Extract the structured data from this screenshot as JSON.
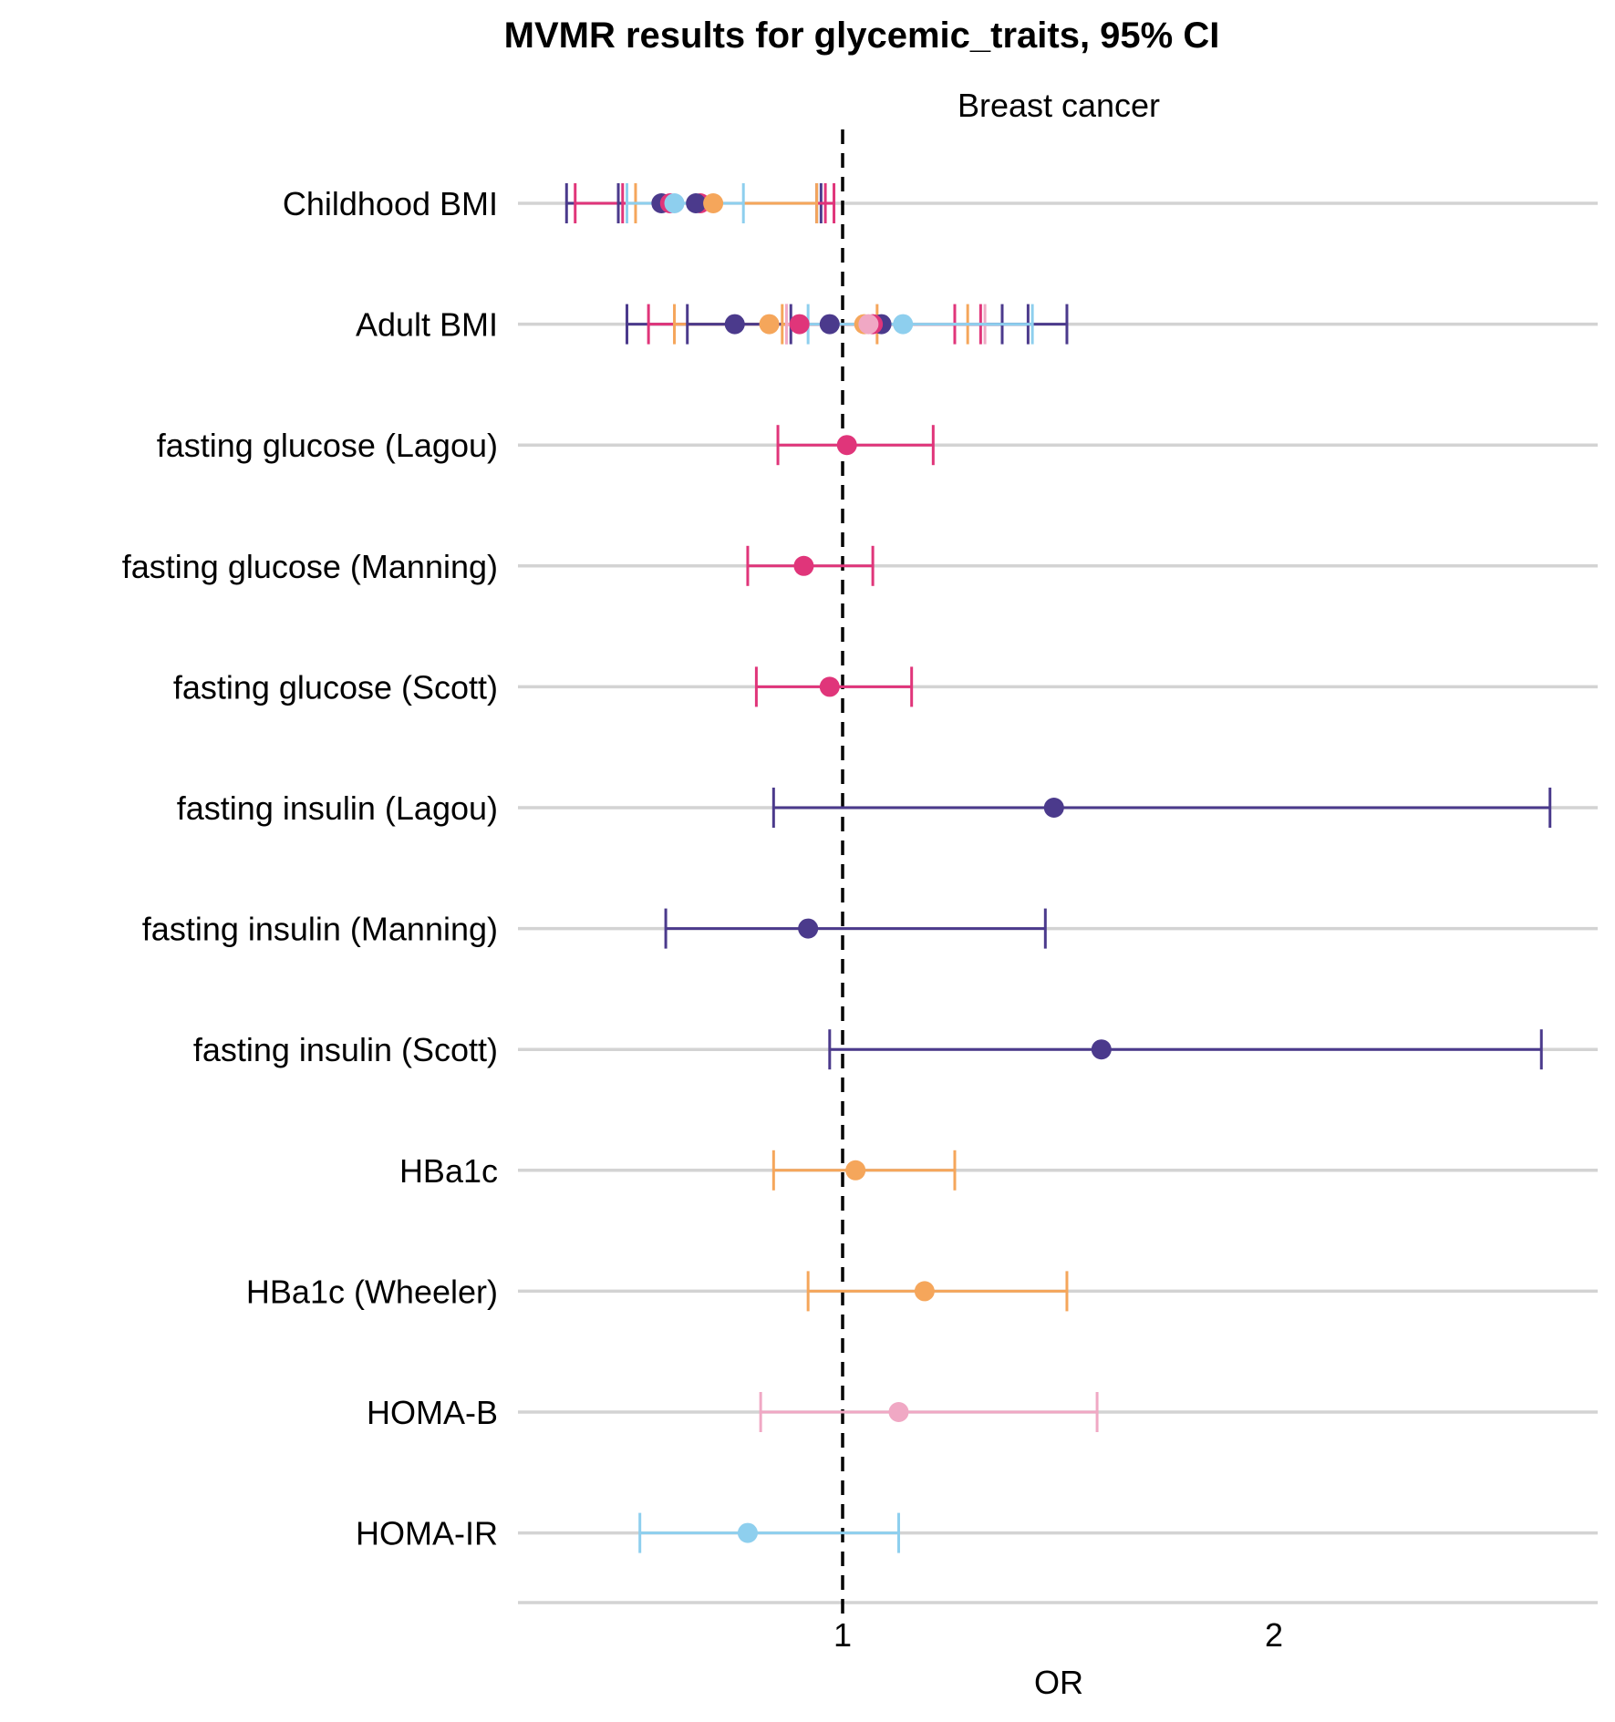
{
  "chart_data": {
    "type": "scatter",
    "title": "MVMR results for glycemic_traits, 95% CI",
    "facet_label": "Breast cancer",
    "xlabel": "OR",
    "x_ticks": [
      1,
      2
    ],
    "xlim": [
      0.25,
      2.75
    ],
    "reference_line": 1,
    "grid": "horizontal",
    "legend": "none",
    "categories": [
      "Childhood BMI",
      "Adult BMI",
      "fasting glucose (Lagou)",
      "fasting glucose (Manning)",
      "fasting glucose (Scott)",
      "fasting insulin (Lagou)",
      "fasting insulin (Manning)",
      "fasting insulin (Scott)",
      "HBa1c",
      "HBa1c (Wheeler)",
      "HOMA-B",
      "HOMA-IR"
    ],
    "colors": {
      "purple": "#4b3a8c",
      "magenta": "#e0357a",
      "orange": "#f5a65b",
      "pink": "#f0a8c4",
      "skyblue": "#8ecfee"
    },
    "points": [
      {
        "category": "Childhood BMI",
        "color": "purple",
        "or": 0.58,
        "lower": 0.36,
        "upper": 0.95
      },
      {
        "category": "Childhood BMI",
        "color": "magenta",
        "or": 0.67,
        "lower": 0.38,
        "upper": 0.98
      },
      {
        "category": "Childhood BMI",
        "color": "purple",
        "or": 0.66,
        "lower": 0.48,
        "upper": 0.94
      },
      {
        "category": "Childhood BMI",
        "color": "magenta",
        "or": 0.6,
        "lower": 0.49,
        "upper": 0.96
      },
      {
        "category": "Childhood BMI",
        "color": "orange",
        "or": 0.7,
        "lower": 0.52,
        "upper": 0.94
      },
      {
        "category": "Childhood BMI",
        "color": "skyblue",
        "or": 0.61,
        "lower": 0.5,
        "upper": 0.77
      },
      {
        "category": "Adult BMI",
        "color": "purple",
        "or": 0.75,
        "lower": 0.5,
        "upper": 1.52
      },
      {
        "category": "Adult BMI",
        "color": "magenta",
        "or": 0.9,
        "lower": 0.55,
        "upper": 1.32
      },
      {
        "category": "Adult BMI",
        "color": "orange",
        "or": 0.83,
        "lower": 0.61,
        "upper": 1.08
      },
      {
        "category": "Adult BMI",
        "color": "purple",
        "or": 0.97,
        "lower": 0.64,
        "upper": 1.37
      },
      {
        "category": "Adult BMI",
        "color": "purple",
        "or": 1.09,
        "lower": 0.88,
        "upper": 1.43
      },
      {
        "category": "Adult BMI",
        "color": "magenta",
        "or": 1.07,
        "lower": 0.87,
        "upper": 1.26
      },
      {
        "category": "Adult BMI",
        "color": "orange",
        "or": 1.05,
        "lower": 0.86,
        "upper": 1.29
      },
      {
        "category": "Adult BMI",
        "color": "pink",
        "or": 1.06,
        "lower": 0.87,
        "upper": 1.33
      },
      {
        "category": "Adult BMI",
        "color": "skyblue",
        "or": 1.14,
        "lower": 0.92,
        "upper": 1.44
      },
      {
        "category": "fasting glucose (Lagou)",
        "color": "magenta",
        "or": 1.01,
        "lower": 0.85,
        "upper": 1.21
      },
      {
        "category": "fasting glucose (Manning)",
        "color": "magenta",
        "or": 0.91,
        "lower": 0.78,
        "upper": 1.07
      },
      {
        "category": "fasting glucose (Scott)",
        "color": "magenta",
        "or": 0.97,
        "lower": 0.8,
        "upper": 1.16
      },
      {
        "category": "fasting insulin (Lagou)",
        "color": "purple",
        "or": 1.49,
        "lower": 0.84,
        "upper": 2.64
      },
      {
        "category": "fasting insulin (Manning)",
        "color": "purple",
        "or": 0.92,
        "lower": 0.59,
        "upper": 1.47
      },
      {
        "category": "fasting insulin (Scott)",
        "color": "purple",
        "or": 1.6,
        "lower": 0.97,
        "upper": 2.62
      },
      {
        "category": "HBa1c",
        "color": "orange",
        "or": 1.03,
        "lower": 0.84,
        "upper": 1.26
      },
      {
        "category": "HBa1c (Wheeler)",
        "color": "orange",
        "or": 1.19,
        "lower": 0.92,
        "upper": 1.52
      },
      {
        "category": "HOMA-B",
        "color": "pink",
        "or": 1.13,
        "lower": 0.81,
        "upper": 1.59
      },
      {
        "category": "HOMA-IR",
        "color": "skyblue",
        "or": 0.78,
        "lower": 0.53,
        "upper": 1.13
      }
    ]
  }
}
